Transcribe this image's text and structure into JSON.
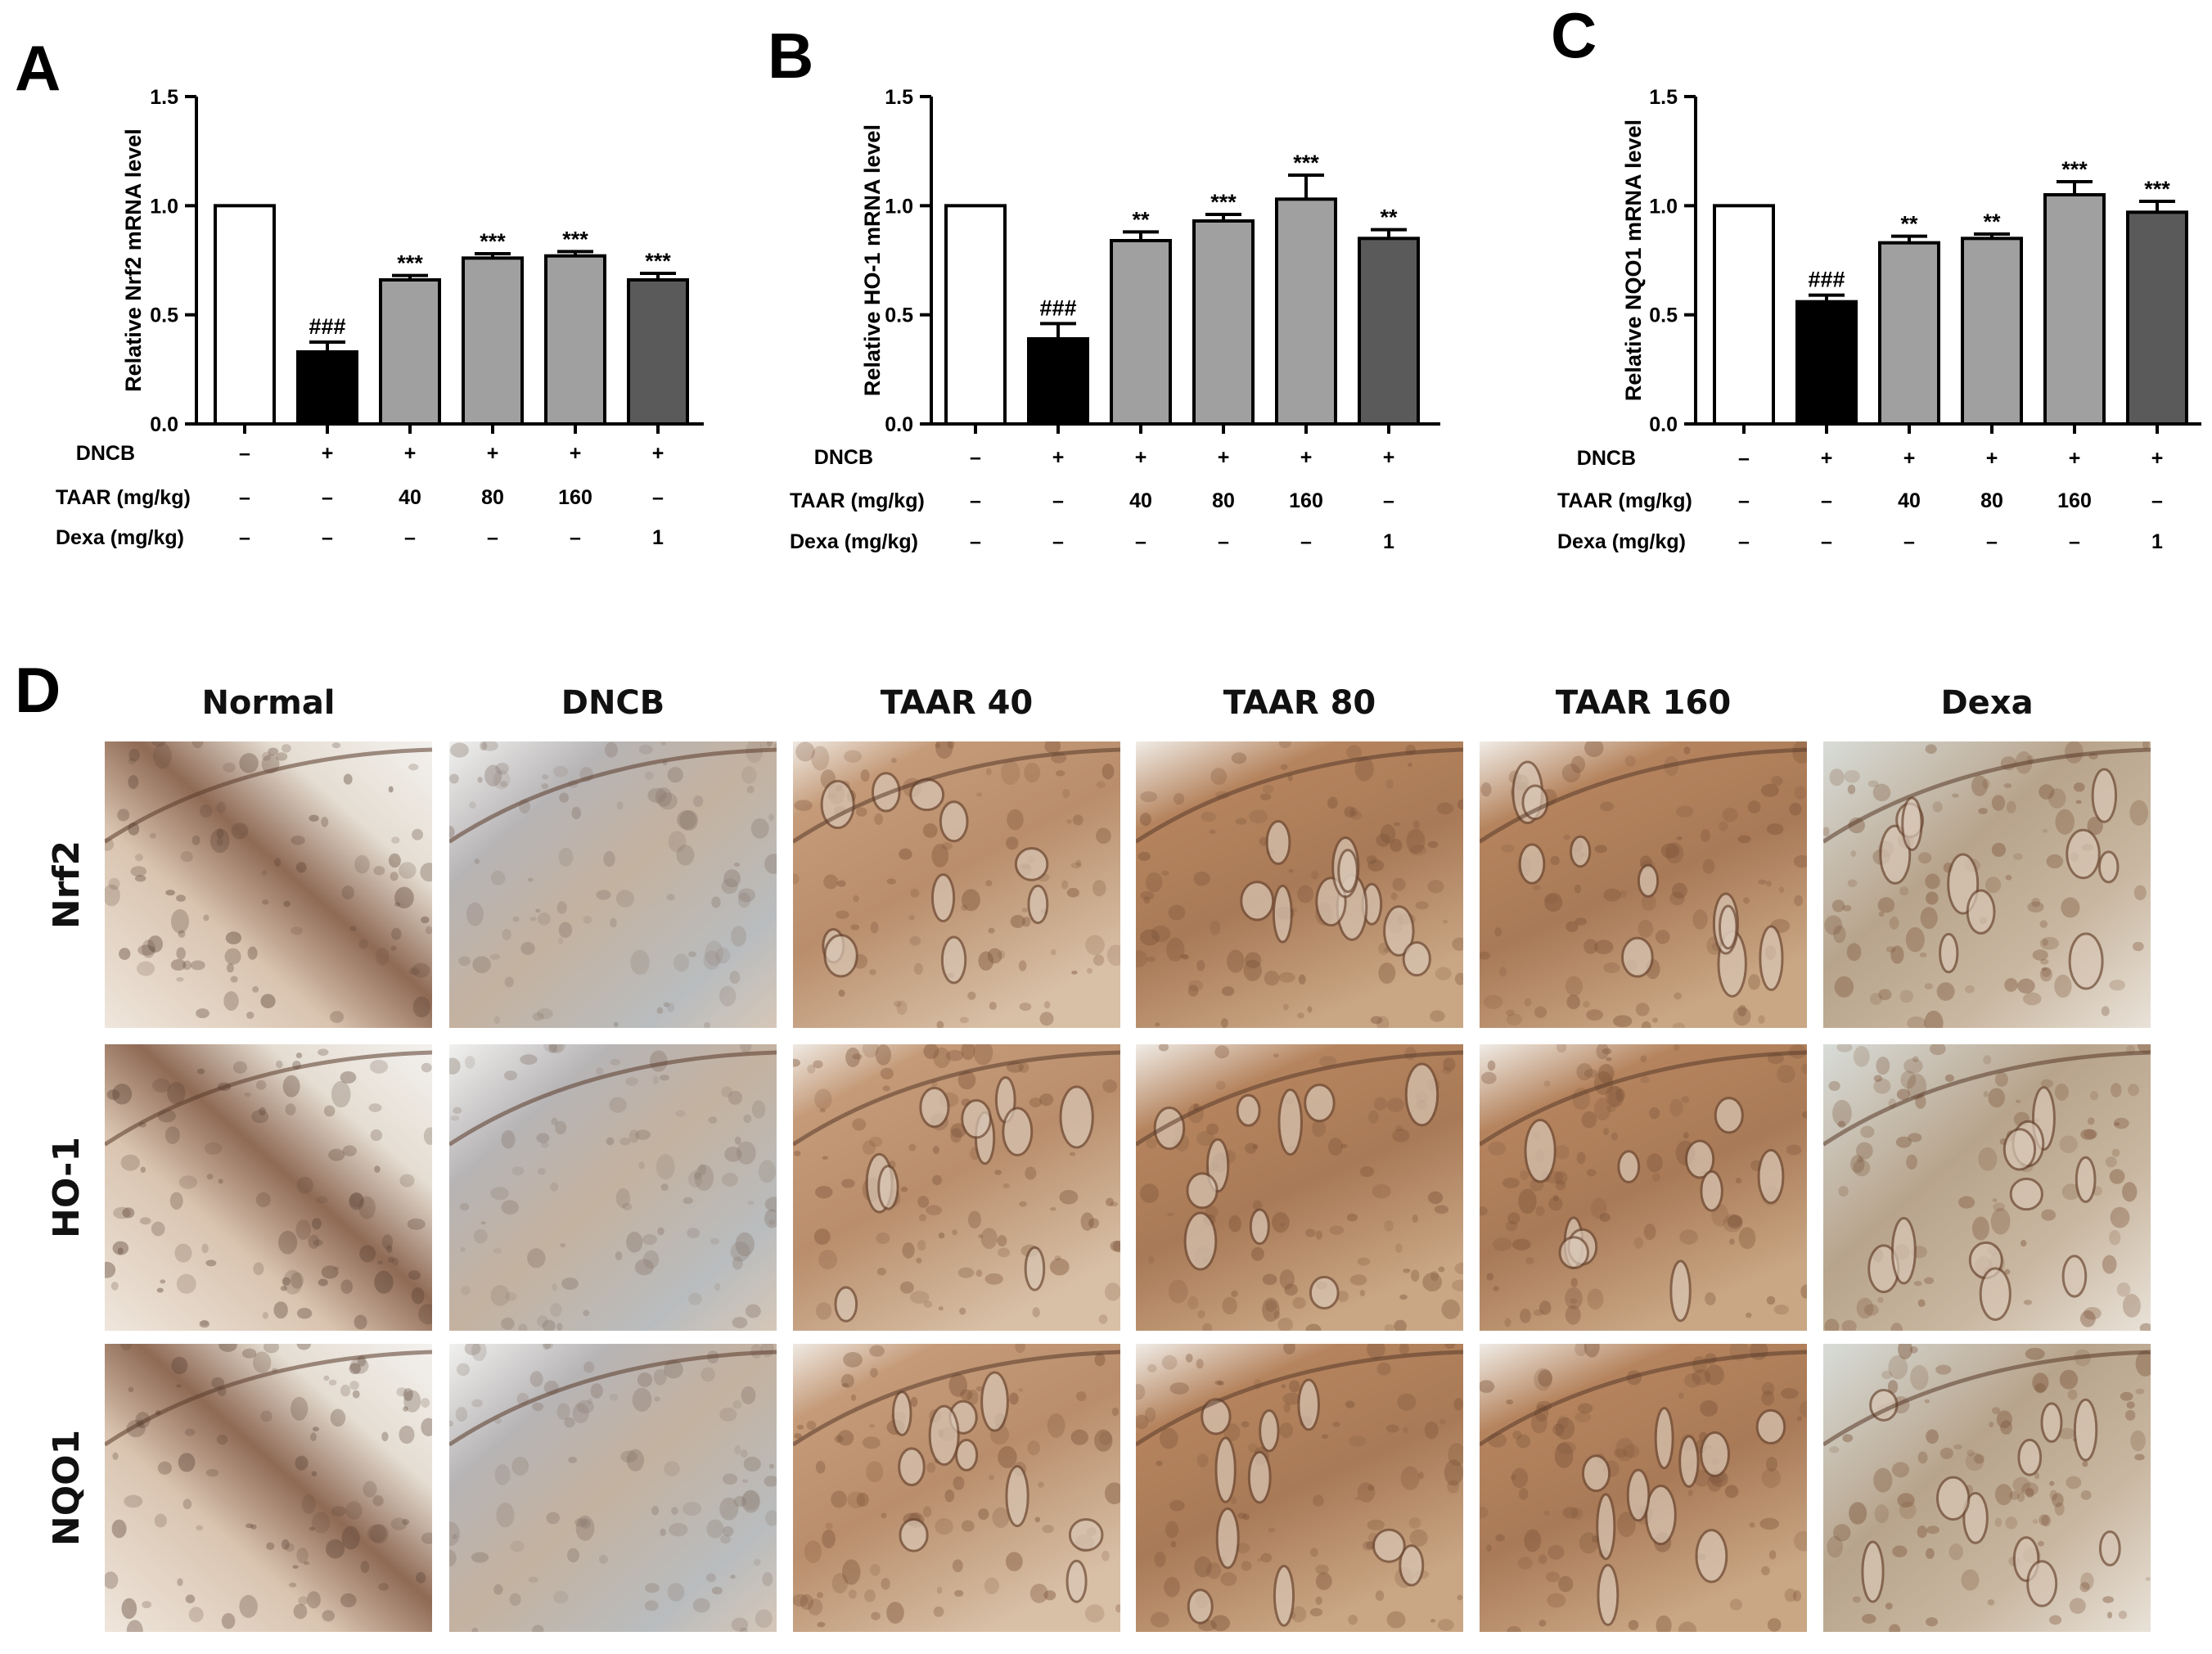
{
  "panels": [
    "A",
    "B",
    "C",
    "D"
  ],
  "chart_data": [
    {
      "type": "bar",
      "letter": "A",
      "ylabel": "Relative Nrf2 mRNA level",
      "ylim": [
        0,
        1.5
      ],
      "yticks": [
        "0.0",
        "0.5",
        "1.0",
        "1.5"
      ],
      "values": [
        1.0,
        0.33,
        0.66,
        0.76,
        0.77,
        0.66
      ],
      "errors": [
        0,
        0.045,
        0.02,
        0.02,
        0.02,
        0.03
      ],
      "significance": [
        "",
        "###",
        "***",
        "***",
        "***",
        "***"
      ],
      "bar_colors": [
        "#ffffff",
        "#000000",
        "#a0a0a0",
        "#a0a0a0",
        "#a0a0a0",
        "#5a5a5a"
      ],
      "rows": [
        {
          "label": "DNCB",
          "values": [
            "-",
            "+",
            "+",
            "+",
            "+",
            "+"
          ]
        },
        {
          "label": "TAAR (mg/kg)",
          "values": [
            "-",
            "-",
            "40",
            "80",
            "160",
            "-"
          ]
        },
        {
          "label": "Dexa (mg/kg)",
          "values": [
            "-",
            "-",
            "-",
            "-",
            "-",
            "1"
          ]
        }
      ]
    },
    {
      "type": "bar",
      "letter": "B",
      "ylabel": "Relative HO-1 mRNA level",
      "ylim": [
        0,
        1.5
      ],
      "yticks": [
        "0.0",
        "0.5",
        "1.0",
        "1.5"
      ],
      "values": [
        1.0,
        0.39,
        0.84,
        0.93,
        1.03,
        0.85
      ],
      "errors": [
        0,
        0.07,
        0.04,
        0.03,
        0.11,
        0.04
      ],
      "significance": [
        "",
        "###",
        "**",
        "***",
        "***",
        "**"
      ],
      "bar_colors": [
        "#ffffff",
        "#000000",
        "#a0a0a0",
        "#a0a0a0",
        "#a0a0a0",
        "#5a5a5a"
      ],
      "rows": [
        {
          "label": "DNCB",
          "values": [
            "-",
            "+",
            "+",
            "+",
            "+",
            "+"
          ]
        },
        {
          "label": "TAAR (mg/kg)",
          "values": [
            "-",
            "-",
            "40",
            "80",
            "160",
            "-"
          ]
        },
        {
          "label": "Dexa (mg/kg)",
          "values": [
            "-",
            "-",
            "-",
            "-",
            "-",
            "1"
          ]
        }
      ]
    },
    {
      "type": "bar",
      "letter": "C",
      "ylabel": "Relative NQO1 mRNA level",
      "ylim": [
        0,
        1.5
      ],
      "yticks": [
        "0.0",
        "0.5",
        "1.0",
        "1.5"
      ],
      "values": [
        1.0,
        0.56,
        0.83,
        0.85,
        1.05,
        0.97
      ],
      "errors": [
        0,
        0.03,
        0.03,
        0.02,
        0.06,
        0.05
      ],
      "significance": [
        "",
        "###",
        "**",
        "**",
        "***",
        "***"
      ],
      "bar_colors": [
        "#ffffff",
        "#000000",
        "#a0a0a0",
        "#a0a0a0",
        "#a0a0a0",
        "#5a5a5a"
      ],
      "rows": [
        {
          "label": "DNCB",
          "values": [
            "-",
            "+",
            "+",
            "+",
            "+",
            "+"
          ]
        },
        {
          "label": "TAAR (mg/kg)",
          "values": [
            "-",
            "-",
            "40",
            "80",
            "160",
            "-"
          ]
        },
        {
          "label": "Dexa (mg/kg)",
          "values": [
            "-",
            "-",
            "-",
            "-",
            "-",
            "1"
          ]
        }
      ]
    }
  ],
  "histology": {
    "letter": "D",
    "columns": [
      "Normal",
      "DNCB",
      "TAAR 40",
      "TAAR 80",
      "TAAR 160",
      "Dexa"
    ],
    "rows": [
      "Nrf2",
      "HO-1",
      "NQO1"
    ]
  }
}
